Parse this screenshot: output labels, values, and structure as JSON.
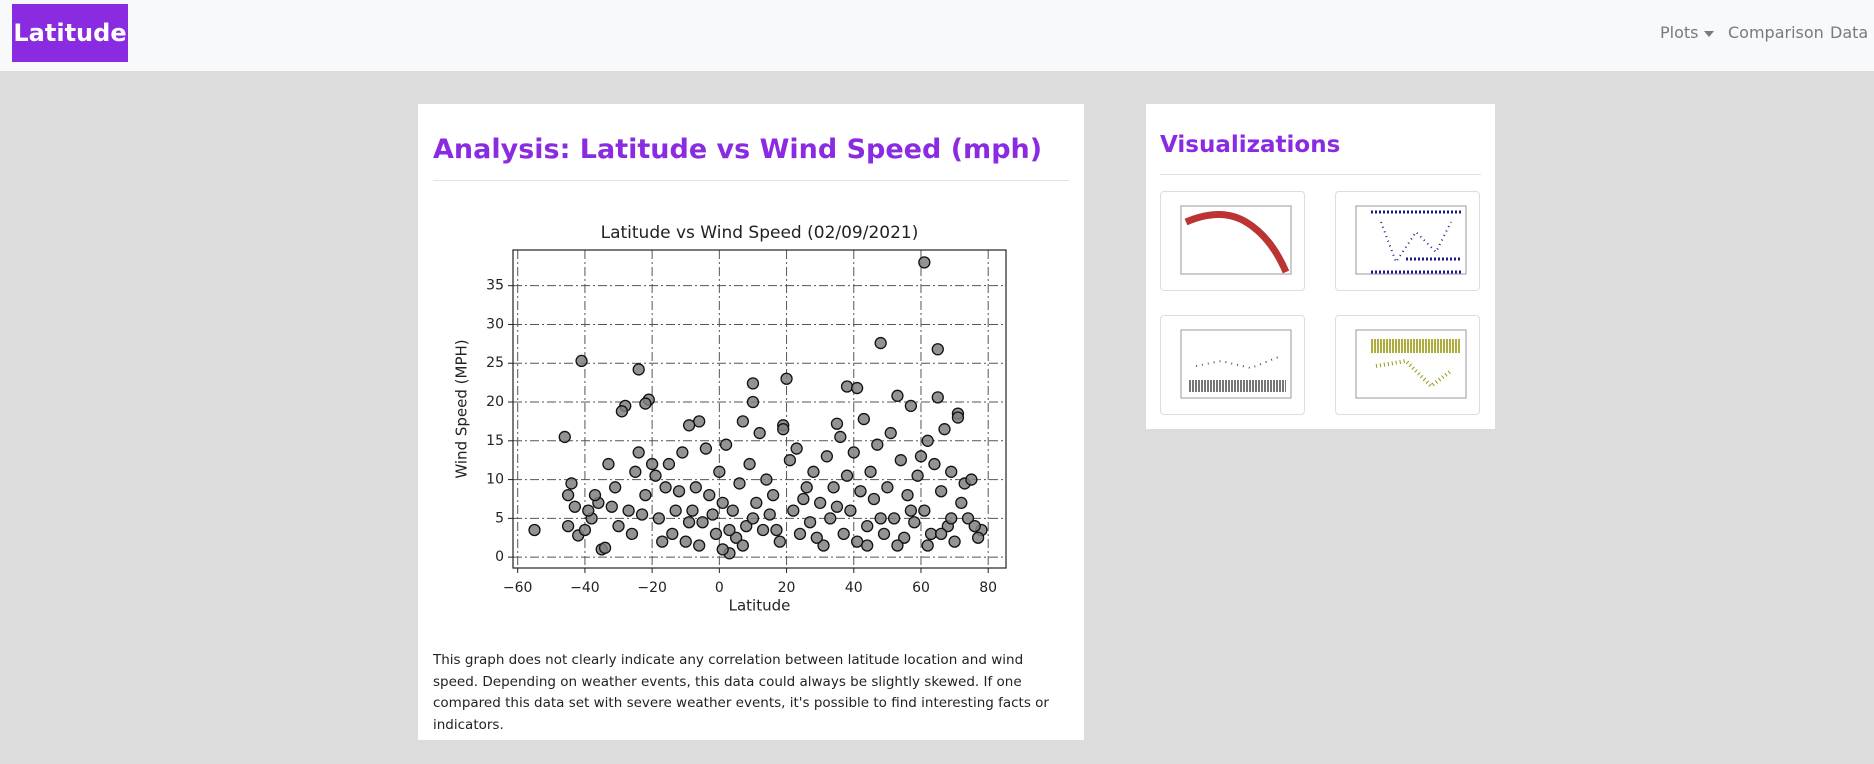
{
  "navbar": {
    "brand": "Latitude",
    "links": [
      "Plots",
      "Comparison",
      "Data"
    ]
  },
  "main": {
    "title": "Analysis: Latitude vs Wind Speed (mph)",
    "description": "This graph does not clearly indicate any correlation between latitude location and wind speed. Depending on weather events, this data could always be slightly skewed. If one compared this data set with severe weather events, it's possible to find interesting facts or indicators."
  },
  "chart_data": {
    "type": "scatter",
    "title": "Latitude vs Wind Speed (02/09/2021)",
    "x_label": "Latitude",
    "y_label": "Wind Speed (MPH)",
    "x": [
      -55,
      -46,
      -41,
      -24,
      -21,
      -22,
      -28,
      -29,
      10,
      20,
      48,
      61,
      65,
      38,
      41,
      53,
      65,
      10,
      -6,
      -9,
      7,
      19,
      35,
      71,
      71,
      -44,
      -45,
      -42,
      -35,
      -34,
      3,
      1,
      78,
      77,
      -45,
      -40,
      -43,
      -38,
      -36,
      -33,
      -31,
      -30,
      -27,
      -25,
      -24,
      -22,
      -20,
      -19,
      -18,
      -16,
      -14,
      -12,
      -11,
      -10,
      -8,
      -7,
      -5,
      -4,
      -3,
      -1,
      0,
      2,
      4,
      5,
      6,
      8,
      9,
      11,
      12,
      13,
      14,
      15,
      16,
      18,
      19,
      21,
      22,
      23,
      24,
      26,
      27,
      28,
      30,
      31,
      32,
      33,
      34,
      36,
      37,
      38,
      39,
      40,
      41,
      42,
      43,
      44,
      45,
      46,
      47,
      49,
      50,
      51,
      52,
      54,
      55,
      56,
      57,
      58,
      59,
      60,
      61,
      62,
      63,
      64,
      66,
      67,
      68,
      69,
      70,
      72,
      73,
      74,
      75,
      76,
      -37,
      -32,
      -26,
      -23,
      -17,
      -13,
      -9,
      -6,
      -2,
      1,
      3,
      7,
      10,
      17,
      25,
      29,
      35,
      44,
      48,
      53,
      57,
      62,
      66,
      69,
      -39,
      -15
    ],
    "values": [
      3.5,
      15.5,
      25.3,
      24.2,
      20.3,
      19.8,
      19.5,
      18.8,
      22.4,
      23,
      27.6,
      38,
      26.8,
      22,
      21.8,
      20.8,
      20.6,
      20,
      17.5,
      17,
      17.5,
      17,
      17.2,
      18.5,
      18,
      9.5,
      8,
      2.8,
      1,
      1.2,
      0.5,
      1,
      3.5,
      2.5,
      4,
      3.5,
      6.5,
      5,
      7,
      12,
      9,
      4,
      6,
      11,
      13.5,
      8,
      12,
      10.5,
      5,
      9,
      3,
      8.5,
      13.5,
      2,
      6,
      9,
      4.5,
      14,
      8,
      3,
      11,
      14.5,
      6,
      2.5,
      9.5,
      4,
      12,
      7,
      16,
      3.5,
      10,
      5.5,
      8,
      2,
      16.5,
      12.5,
      6,
      14,
      3,
      9,
      4.5,
      11,
      7,
      1.5,
      13,
      5,
      9,
      15.5,
      3,
      10.5,
      6,
      13.5,
      2,
      8.5,
      17.8,
      4,
      11,
      7.5,
      14.5,
      3,
      9,
      16,
      5,
      12.5,
      2.5,
      8,
      19.5,
      4.5,
      10.5,
      13,
      6,
      15,
      3,
      12,
      8.5,
      16.5,
      4,
      11,
      2,
      7,
      9.5,
      5,
      10,
      4,
      8,
      6.5,
      3,
      5.5,
      2,
      6,
      4.5,
      1.5,
      5.5,
      7,
      3.5,
      1.5,
      5,
      3.5,
      7.5,
      2.5,
      6.5,
      1.5,
      5,
      1.5,
      6,
      1.5,
      3,
      5,
      6,
      12
    ],
    "color": "#808080",
    "xlim": [
      -61.4,
      85.3
    ],
    "ylim": [
      -1.4,
      39.6
    ],
    "xticks": [
      {
        "value": -60,
        "label": "−60"
      },
      {
        "value": -40,
        "label": "−40"
      },
      {
        "value": -20,
        "label": "−20"
      },
      0,
      20,
      40,
      60,
      80
    ],
    "yticks": [
      0,
      5,
      10,
      15,
      20,
      25,
      30,
      35
    ],
    "grid": true
  },
  "sidebar": {
    "title": "Visualizations"
  }
}
